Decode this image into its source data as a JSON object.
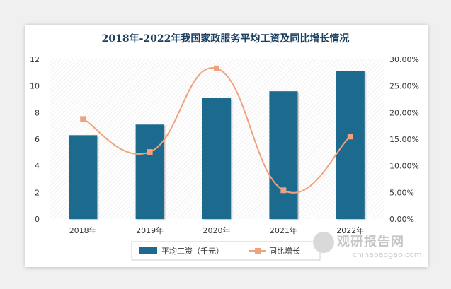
{
  "chart_data": {
    "type": "bar",
    "title": "2018年-2022年我国家政服务平均工资及同比增长情况",
    "categories": [
      "2018年",
      "2019年",
      "2020年",
      "2021年",
      "2022年"
    ],
    "series": [
      {
        "name": "平均工资（千元）",
        "type": "bar",
        "axis": "left",
        "values": [
          6.3,
          7.1,
          9.1,
          9.6,
          11.1
        ]
      },
      {
        "name": "同比增长",
        "type": "line",
        "axis": "right",
        "values": [
          0.188,
          0.126,
          0.283,
          0.054,
          0.155
        ]
      }
    ],
    "y_left": {
      "ylim": [
        0,
        12
      ],
      "ticks": [
        "0",
        "2",
        "4",
        "6",
        "8",
        "10",
        "12"
      ]
    },
    "y_right": {
      "ylim": [
        0,
        0.3
      ],
      "ticks": [
        "0.00%",
        "5.00%",
        "10.00%",
        "15.00%",
        "20.00%",
        "25.00%",
        "30.00%"
      ]
    },
    "legend": "bottom",
    "grid": false,
    "colors": {
      "bar": "#1e6a8e",
      "line": "#f0a27f",
      "marker": "#f0a27f"
    }
  },
  "watermark": {
    "cn": "观研报告网",
    "en": "chinabaogao.com"
  }
}
